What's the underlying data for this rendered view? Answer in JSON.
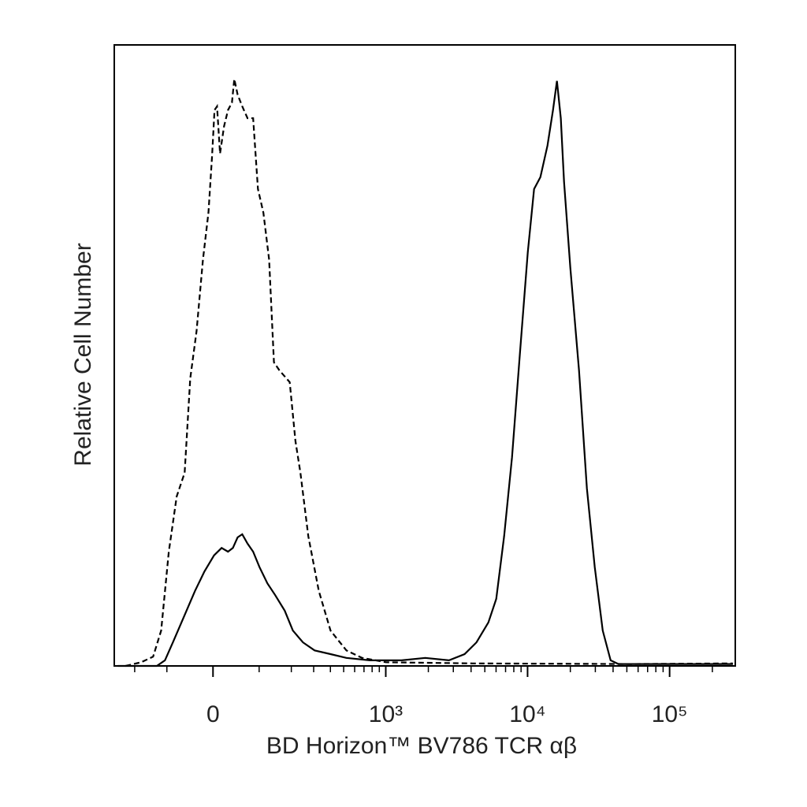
{
  "chart_data": {
    "type": "line",
    "xlabel": "BD Horizon™ BV786 TCR αβ",
    "ylabel": "Relative Cell Number",
    "xscale": "biexponential",
    "xlim": [
      -290,
      290000
    ],
    "ylim": [
      0,
      100
    ],
    "xticks": [
      0,
      {
        "value": 1000,
        "label": "10³"
      },
      {
        "value": 10000,
        "label": "10⁴"
      },
      {
        "value": 100000,
        "label": "10⁵"
      }
    ],
    "xminorticks": [
      -200,
      -100,
      100,
      200,
      300,
      400,
      500,
      600,
      700,
      800,
      900,
      2000,
      3000,
      4000,
      5000,
      6000,
      7000,
      8000,
      9000,
      20000,
      30000,
      40000,
      50000,
      60000,
      70000,
      80000,
      90000,
      200000
    ],
    "series": [
      {
        "color": "#000000",
        "linestyle": "dashed",
        "x": [
          -237,
          -176,
          -138,
          -115,
          -95,
          -76,
          -58,
          -46,
          -33,
          -20,
          -9,
          -2,
          3,
          8,
          14,
          22,
          30,
          38,
          43,
          50,
          60,
          72,
          85,
          97,
          111,
          127,
          141,
          158,
          194,
          216,
          237,
          273,
          328,
          401,
          523,
          678,
          1000,
          4096,
          52900,
          278700
        ],
        "values": [
          0,
          0.6,
          1.5,
          5.7,
          18.4,
          27.3,
          31.1,
          46.3,
          53.9,
          65.4,
          73.0,
          81.9,
          89.5,
          90.1,
          82.5,
          86.9,
          89.5,
          90.7,
          94.5,
          92.0,
          90.1,
          88.2,
          88.2,
          76.8,
          73.0,
          65.4,
          48.9,
          47.6,
          45.7,
          36.2,
          31.1,
          20.9,
          12.1,
          5.7,
          2.5,
          1.3,
          0.6,
          0.4,
          0.3,
          0.4
        ]
      },
      {
        "color": "#000000",
        "linestyle": "solid",
        "x": [
          -273,
          -127,
          -105,
          -85,
          -58,
          -36,
          -17,
          2,
          17,
          30,
          40,
          50,
          60,
          72,
          85,
          101,
          122,
          145,
          176,
          206,
          248,
          305,
          401,
          523,
          772,
          1293,
          1903,
          2794,
          3600,
          4367,
          5295,
          6015,
          6840,
          7770,
          8820,
          10030,
          11110,
          12310,
          13810,
          15100,
          16090,
          17140,
          18060,
          20010,
          23030,
          26160,
          29730,
          33800,
          38430,
          43680,
          278700
        ],
        "values": [
          0,
          0,
          0.9,
          3.8,
          8.2,
          12.1,
          15.2,
          17.8,
          19.0,
          18.4,
          19.0,
          20.7,
          21.2,
          19.7,
          18.4,
          15.9,
          13.3,
          11.4,
          8.9,
          5.7,
          3.8,
          2.5,
          1.9,
          1.3,
          0.9,
          0.9,
          1.3,
          0.9,
          1.9,
          3.8,
          7.0,
          10.8,
          20.9,
          33.6,
          50.1,
          66.6,
          76.8,
          78.7,
          83.8,
          89.5,
          94.2,
          88.2,
          78.0,
          64.1,
          47.6,
          28.6,
          15.9,
          5.7,
          0.9,
          0.3,
          0.3
        ]
      }
    ]
  }
}
